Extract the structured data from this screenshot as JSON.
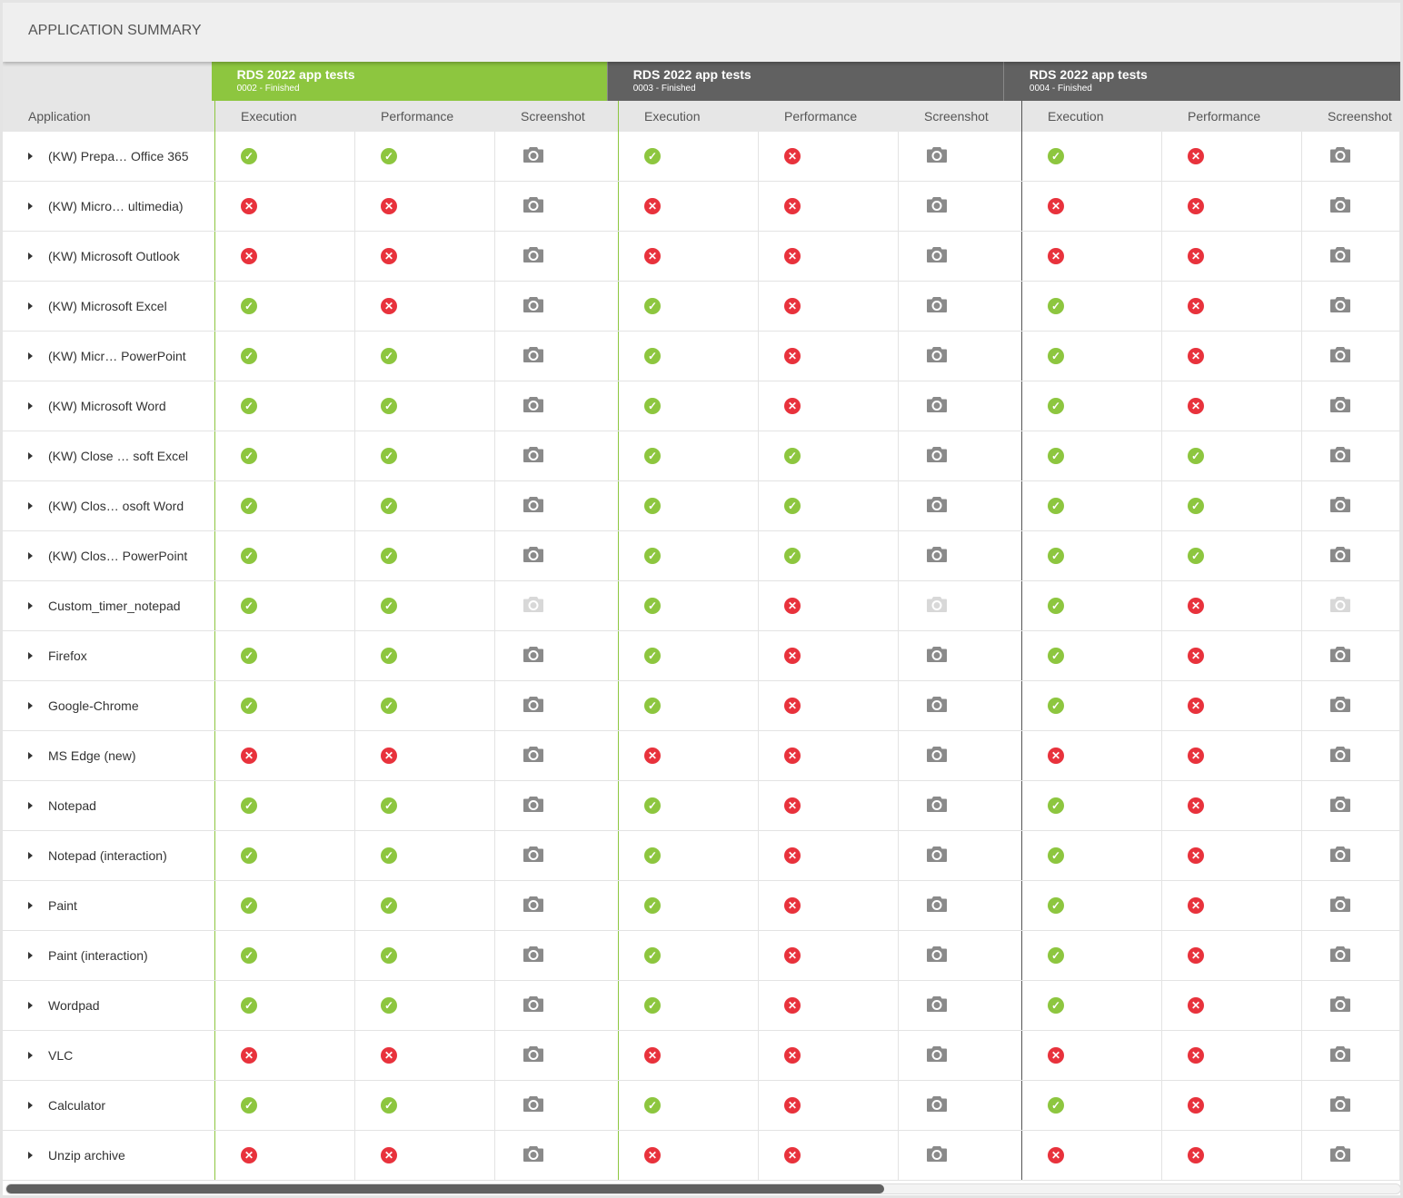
{
  "title": "APPLICATION SUMMARY",
  "colors": {
    "ok": "#8dc63f",
    "fail": "#e8323c",
    "group_active": "#8dc63f",
    "group_inactive": "#616161",
    "camera": "#8a8a8a",
    "camera_disabled": "#d8d8d8"
  },
  "column_app": "Application",
  "subcolumns": [
    "Execution",
    "Performance",
    "Screenshot"
  ],
  "groups": [
    {
      "title": "RDS 2022 app tests",
      "subtitle": "0002 - Finished",
      "active": true
    },
    {
      "title": "RDS 2022 app tests",
      "subtitle": "0003 - Finished",
      "active": false
    },
    {
      "title": "RDS 2022 app tests",
      "subtitle": "0004 - Finished",
      "active": false
    }
  ],
  "rows": [
    {
      "name": "(KW) Prepa… Office 365",
      "r": [
        [
          "ok",
          "ok",
          "on"
        ],
        [
          "ok",
          "fail",
          "on"
        ],
        [
          "ok",
          "fail",
          "on"
        ]
      ]
    },
    {
      "name": "(KW) Micro… ultimedia)",
      "r": [
        [
          "fail",
          "fail",
          "on"
        ],
        [
          "fail",
          "fail",
          "on"
        ],
        [
          "fail",
          "fail",
          "on"
        ]
      ]
    },
    {
      "name": "(KW) Microsoft Outlook",
      "r": [
        [
          "fail",
          "fail",
          "on"
        ],
        [
          "fail",
          "fail",
          "on"
        ],
        [
          "fail",
          "fail",
          "on"
        ]
      ]
    },
    {
      "name": "(KW) Microsoft Excel",
      "r": [
        [
          "ok",
          "fail",
          "on"
        ],
        [
          "ok",
          "fail",
          "on"
        ],
        [
          "ok",
          "fail",
          "on"
        ]
      ]
    },
    {
      "name": "(KW) Micr… PowerPoint",
      "r": [
        [
          "ok",
          "ok",
          "on"
        ],
        [
          "ok",
          "fail",
          "on"
        ],
        [
          "ok",
          "fail",
          "on"
        ]
      ]
    },
    {
      "name": "(KW) Microsoft Word",
      "r": [
        [
          "ok",
          "ok",
          "on"
        ],
        [
          "ok",
          "fail",
          "on"
        ],
        [
          "ok",
          "fail",
          "on"
        ]
      ]
    },
    {
      "name": "(KW) Close … soft Excel",
      "r": [
        [
          "ok",
          "ok",
          "on"
        ],
        [
          "ok",
          "ok",
          "on"
        ],
        [
          "ok",
          "ok",
          "on"
        ]
      ]
    },
    {
      "name": "(KW) Clos… osoft Word",
      "r": [
        [
          "ok",
          "ok",
          "on"
        ],
        [
          "ok",
          "ok",
          "on"
        ],
        [
          "ok",
          "ok",
          "on"
        ]
      ]
    },
    {
      "name": "(KW) Clos… PowerPoint",
      "r": [
        [
          "ok",
          "ok",
          "on"
        ],
        [
          "ok",
          "ok",
          "on"
        ],
        [
          "ok",
          "ok",
          "on"
        ]
      ]
    },
    {
      "name": "Custom_timer_notepad",
      "r": [
        [
          "ok",
          "ok",
          "off"
        ],
        [
          "ok",
          "fail",
          "off"
        ],
        [
          "ok",
          "fail",
          "off"
        ]
      ]
    },
    {
      "name": "Firefox",
      "r": [
        [
          "ok",
          "ok",
          "on"
        ],
        [
          "ok",
          "fail",
          "on"
        ],
        [
          "ok",
          "fail",
          "on"
        ]
      ]
    },
    {
      "name": "Google-Chrome",
      "r": [
        [
          "ok",
          "ok",
          "on"
        ],
        [
          "ok",
          "fail",
          "on"
        ],
        [
          "ok",
          "fail",
          "on"
        ]
      ]
    },
    {
      "name": "MS Edge (new)",
      "r": [
        [
          "fail",
          "fail",
          "on"
        ],
        [
          "fail",
          "fail",
          "on"
        ],
        [
          "fail",
          "fail",
          "on"
        ]
      ]
    },
    {
      "name": "Notepad",
      "r": [
        [
          "ok",
          "ok",
          "on"
        ],
        [
          "ok",
          "fail",
          "on"
        ],
        [
          "ok",
          "fail",
          "on"
        ]
      ]
    },
    {
      "name": "Notepad (interaction)",
      "r": [
        [
          "ok",
          "ok",
          "on"
        ],
        [
          "ok",
          "fail",
          "on"
        ],
        [
          "ok",
          "fail",
          "on"
        ]
      ]
    },
    {
      "name": "Paint",
      "r": [
        [
          "ok",
          "ok",
          "on"
        ],
        [
          "ok",
          "fail",
          "on"
        ],
        [
          "ok",
          "fail",
          "on"
        ]
      ]
    },
    {
      "name": "Paint (interaction)",
      "r": [
        [
          "ok",
          "ok",
          "on"
        ],
        [
          "ok",
          "fail",
          "on"
        ],
        [
          "ok",
          "fail",
          "on"
        ]
      ]
    },
    {
      "name": "Wordpad",
      "r": [
        [
          "ok",
          "ok",
          "on"
        ],
        [
          "ok",
          "fail",
          "on"
        ],
        [
          "ok",
          "fail",
          "on"
        ]
      ]
    },
    {
      "name": "VLC",
      "r": [
        [
          "fail",
          "fail",
          "on"
        ],
        [
          "fail",
          "fail",
          "on"
        ],
        [
          "fail",
          "fail",
          "on"
        ]
      ]
    },
    {
      "name": "Calculator",
      "r": [
        [
          "ok",
          "ok",
          "on"
        ],
        [
          "ok",
          "fail",
          "on"
        ],
        [
          "ok",
          "fail",
          "on"
        ]
      ]
    },
    {
      "name": "Unzip archive",
      "r": [
        [
          "fail",
          "fail",
          "on"
        ],
        [
          "fail",
          "fail",
          "on"
        ],
        [
          "fail",
          "fail",
          "on"
        ]
      ]
    }
  ],
  "scrollbar": {
    "position_percent": 0,
    "visible_fraction": 0.63
  }
}
